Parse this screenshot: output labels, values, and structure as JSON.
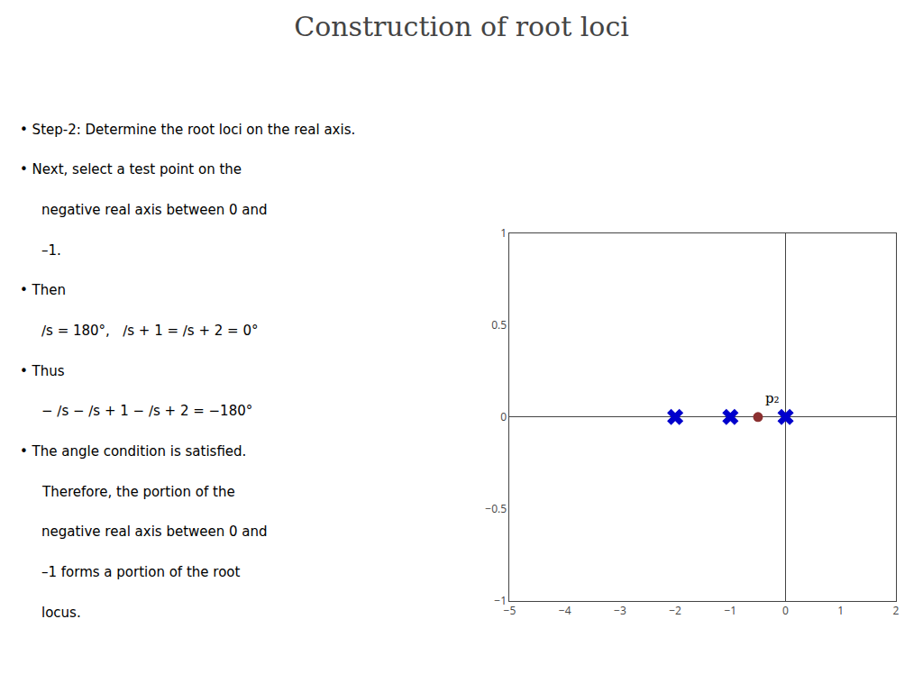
{
  "chart_data": {
    "type": "scatter",
    "title": "Construction of root loci",
    "series": [
      {
        "x": [
          -2,
          -1,
          0
        ],
        "values": [
          0,
          0,
          0
        ],
        "color": "#0000cc",
        "marker": "x"
      },
      {
        "x": [
          -0.5
        ],
        "values": [
          0
        ],
        "color": "#8b3030",
        "marker": "circle"
      }
    ],
    "annotations": [
      {
        "text": "• Step-2: Determine the root loci on the real axis."
      },
      {
        "text": "• Next, select a test point on the"
      },
      {
        "text": "negative real axis between 0 and"
      },
      {
        "text": "–1."
      },
      {
        "text": "• Then"
      },
      {
        "text": "∕s = 180°,   ∕s + 1 = ∕s + 2 = 0°"
      },
      {
        "text": "• Thus"
      },
      {
        "text": "− ∕s − ∕s + 1 − ∕s + 2 = −180°"
      },
      {
        "text": "• The angle condition is satisfied."
      },
      {
        "text": "Therefore, the portion of the"
      },
      {
        "text": "negative real axis between 0 and"
      },
      {
        "text": "–1 forms a portion of the root"
      },
      {
        "text": "locus."
      },
      {
        "text": "p₂",
        "x": -0.5,
        "y": 0
      }
    ],
    "xlim": [
      -5,
      2
    ],
    "ylim": [
      -1,
      1
    ],
    "xticks": [
      -5,
      -4,
      -3,
      -2,
      -1,
      0,
      1,
      2
    ],
    "yticks": [
      -1,
      -0.5,
      0,
      0.5,
      1
    ],
    "grid": false
  }
}
